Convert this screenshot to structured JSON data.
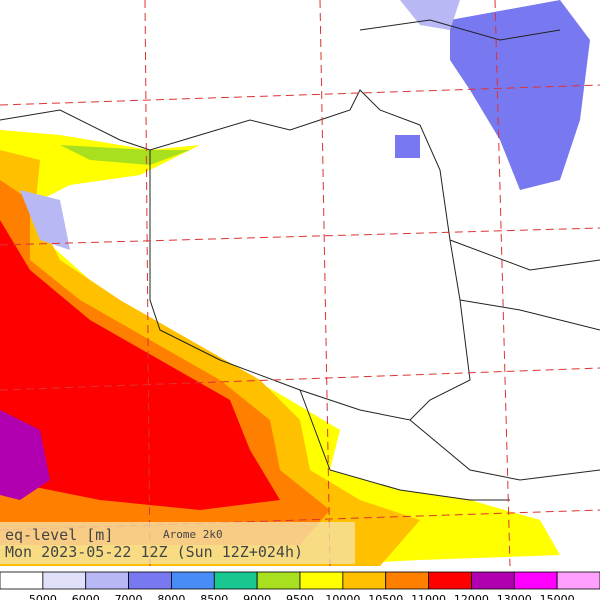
{
  "map": {
    "title": "eq-level [m]",
    "model": "Arome 2k0",
    "valid_time": "Mon 2023-05-22 12Z (Sun 12Z+024h)"
  },
  "legend": {
    "colors": [
      "#ffffff",
      "#e0e0fa",
      "#b8b8f5",
      "#7878f0",
      "#4a8cf5",
      "#18c890",
      "#a8e020",
      "#ffff00",
      "#ffc000",
      "#ff8000",
      "#ff0000",
      "#b000b0",
      "#ff00ff",
      "#ffa0ff"
    ],
    "labels": [
      5000,
      6000,
      7000,
      8000,
      8500,
      9000,
      9500,
      10000,
      10500,
      11000,
      12000,
      13000,
      15000
    ]
  }
}
